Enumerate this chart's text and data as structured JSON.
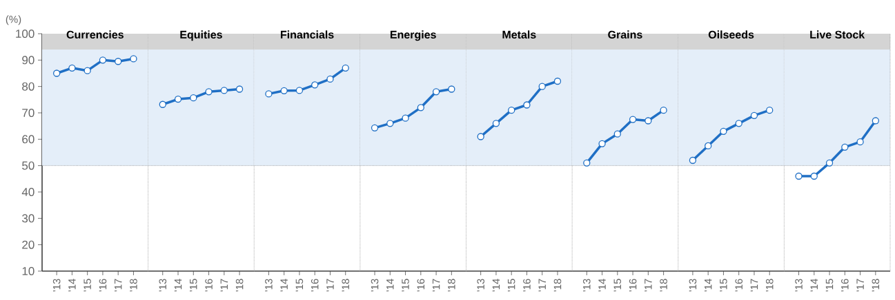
{
  "chart_data": [
    {
      "type": "line",
      "title": "Currencies",
      "ylabel": "(%)",
      "categories": [
        "'13",
        "'14",
        "'15",
        "'16",
        "'17",
        "'18"
      ],
      "values": [
        85,
        87,
        86,
        90,
        89.5,
        90.5
      ],
      "color": "#1f6fc5",
      "marker": "circle",
      "ylim": [
        10,
        100
      ],
      "yticks": [
        10,
        20,
        30,
        40,
        50,
        60,
        70,
        80,
        90,
        100
      ],
      "bands": [
        {
          "axis": "y",
          "from": 50,
          "to": 94,
          "color": "#e4eef9"
        },
        {
          "axis": "y",
          "from": 94,
          "to": 100,
          "color": "#d4d4d4"
        }
      ],
      "ref_lines": [
        {
          "axis": "y",
          "value": 50,
          "line_style": "dotted"
        }
      ]
    },
    {
      "type": "line",
      "title": "Equities",
      "categories": [
        "'13",
        "'14",
        "'15",
        "'16",
        "'17",
        "'18"
      ],
      "values": [
        73.2,
        75.2,
        75.7,
        78,
        78.5,
        79
      ],
      "color": "#1f6fc5",
      "marker": "circle",
      "ylim": [
        10,
        100
      ],
      "tick_labels": "x",
      "bands": [
        {
          "axis": "y",
          "from": 50,
          "to": 94,
          "color": "#e4eef9"
        },
        {
          "axis": "y",
          "from": 94,
          "to": 100,
          "color": "#d4d4d4"
        }
      ],
      "ref_lines": [
        {
          "axis": "y",
          "value": 50,
          "line_style": "dotted"
        }
      ]
    },
    {
      "type": "line",
      "title": "Financials",
      "categories": [
        "'13",
        "'14",
        "'15",
        "'16",
        "'17",
        "'18"
      ],
      "values": [
        77.2,
        78.4,
        78.5,
        80.6,
        82.8,
        87
      ],
      "color": "#1f6fc5",
      "marker": "circle",
      "ylim": [
        10,
        100
      ],
      "tick_labels": "x",
      "bands": [
        {
          "axis": "y",
          "from": 50,
          "to": 94,
          "color": "#e4eef9"
        },
        {
          "axis": "y",
          "from": 94,
          "to": 100,
          "color": "#d4d4d4"
        }
      ],
      "ref_lines": [
        {
          "axis": "y",
          "value": 50,
          "line_style": "dotted"
        }
      ]
    },
    {
      "type": "line",
      "title": "Energies",
      "categories": [
        "'13",
        "'14",
        "'15",
        "'16",
        "'17",
        "'18"
      ],
      "values": [
        64.3,
        66,
        68,
        72,
        78,
        79
      ],
      "color": "#1f6fc5",
      "marker": "circle",
      "ylim": [
        10,
        100
      ],
      "tick_labels": "x",
      "bands": [
        {
          "axis": "y",
          "from": 50,
          "to": 94,
          "color": "#e4eef9"
        },
        {
          "axis": "y",
          "from": 94,
          "to": 100,
          "color": "#d4d4d4"
        }
      ],
      "ref_lines": [
        {
          "axis": "y",
          "value": 50,
          "line_style": "dotted"
        }
      ]
    },
    {
      "type": "line",
      "title": "Metals",
      "categories": [
        "'13",
        "'14",
        "'15",
        "'16",
        "'17",
        "'18"
      ],
      "values": [
        61,
        66,
        71,
        73,
        80,
        82
      ],
      "color": "#1f6fc5",
      "marker": "circle",
      "ylim": [
        10,
        100
      ],
      "tick_labels": "x",
      "bands": [
        {
          "axis": "y",
          "from": 50,
          "to": 94,
          "color": "#e4eef9"
        },
        {
          "axis": "y",
          "from": 94,
          "to": 100,
          "color": "#d4d4d4"
        }
      ],
      "ref_lines": [
        {
          "axis": "y",
          "value": 50,
          "line_style": "dotted"
        }
      ]
    },
    {
      "type": "line",
      "title": "Grains",
      "categories": [
        "'13",
        "'14",
        "'15",
        "'16",
        "'17",
        "'18"
      ],
      "values": [
        51,
        58.3,
        62,
        67.5,
        67,
        71
      ],
      "color": "#1f6fc5",
      "marker": "circle",
      "ylim": [
        10,
        100
      ],
      "tick_labels": "x",
      "bands": [
        {
          "axis": "y",
          "from": 50,
          "to": 94,
          "color": "#e4eef9"
        },
        {
          "axis": "y",
          "from": 94,
          "to": 100,
          "color": "#d4d4d4"
        }
      ],
      "ref_lines": [
        {
          "axis": "y",
          "value": 50,
          "line_style": "dotted"
        }
      ]
    },
    {
      "type": "line",
      "title": "Oilseeds",
      "categories": [
        "'13",
        "'14",
        "'15",
        "'16",
        "'17",
        "'18"
      ],
      "values": [
        52,
        57.5,
        63,
        66,
        69,
        71
      ],
      "color": "#1f6fc5",
      "marker": "circle",
      "ylim": [
        10,
        100
      ],
      "tick_labels": "x",
      "bands": [
        {
          "axis": "y",
          "from": 50,
          "to": 94,
          "color": "#e4eef9"
        },
        {
          "axis": "y",
          "from": 94,
          "to": 100,
          "color": "#d4d4d4"
        }
      ],
      "ref_lines": [
        {
          "axis": "y",
          "value": 50,
          "line_style": "dotted"
        }
      ]
    },
    {
      "type": "line",
      "title": "Live Stock",
      "categories": [
        "'13",
        "'14",
        "'15",
        "'16",
        "'17",
        "'18"
      ],
      "values": [
        46,
        46,
        51,
        57,
        59,
        67
      ],
      "color": "#1f6fc5",
      "marker": "circle",
      "ylim": [
        10,
        100
      ],
      "tick_labels": "x",
      "bands": [
        {
          "axis": "y",
          "from": 50,
          "to": 94,
          "color": "#e4eef9"
        },
        {
          "axis": "y",
          "from": 94,
          "to": 100,
          "color": "#d4d4d4"
        }
      ],
      "ref_lines": [
        {
          "axis": "y",
          "value": 50,
          "line_style": "dotted"
        }
      ]
    }
  ]
}
